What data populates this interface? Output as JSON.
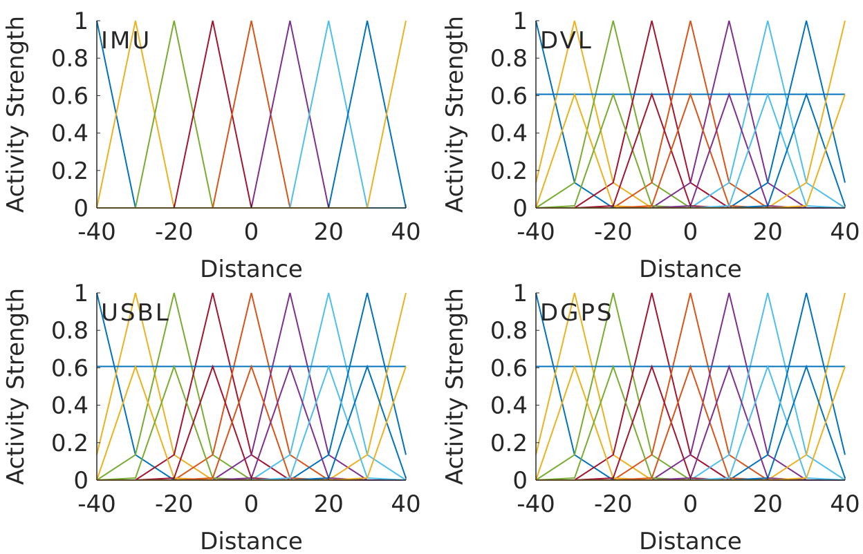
{
  "figure": {
    "series_colors": [
      "#0072BD",
      "#EDB120",
      "#77AC30",
      "#A2142F",
      "#D95319",
      "#7E2F8E",
      "#4DBEEE",
      "#0072BD",
      "#EDB120"
    ]
  },
  "chart_data": [
    {
      "type": "line",
      "annotation": "IMU",
      "xlabel": "Distance",
      "ylabel": "Activity Strength",
      "xlim": [
        -40,
        40
      ],
      "ylim": [
        0,
        1
      ],
      "xticks": [
        "-40",
        "-20",
        "0",
        "20",
        "40"
      ],
      "yticks": [
        "0",
        "0.2",
        "0.4",
        "0.6",
        "0.8",
        "1"
      ],
      "grid": false,
      "x": [
        -40,
        -30,
        -20,
        -10,
        0,
        10,
        20,
        30,
        40
      ],
      "series": [
        {
          "values": [
            1,
            0,
            0,
            0,
            0,
            0,
            0,
            0,
            0
          ]
        },
        {
          "values": [
            0,
            1,
            0,
            0,
            0,
            0,
            0,
            0,
            0
          ]
        },
        {
          "values": [
            0,
            0,
            1,
            0,
            0,
            0,
            0,
            0,
            0
          ]
        },
        {
          "values": [
            0,
            0,
            0,
            1,
            0,
            0,
            0,
            0,
            0
          ]
        },
        {
          "values": [
            0,
            0,
            0,
            0,
            1,
            0,
            0,
            0,
            0
          ]
        },
        {
          "values": [
            0,
            0,
            0,
            0,
            0,
            1,
            0,
            0,
            0
          ]
        },
        {
          "values": [
            0,
            0,
            0,
            0,
            0,
            0,
            1,
            0,
            0
          ]
        },
        {
          "values": [
            0,
            0,
            0,
            0,
            0,
            0,
            0,
            1,
            0
          ]
        },
        {
          "values": [
            0,
            0,
            0,
            0,
            0,
            0,
            0,
            0,
            1
          ]
        }
      ]
    },
    {
      "type": "line",
      "annotation": "DVL",
      "xlabel": "Distance",
      "ylabel": "Activity Strength",
      "xlim": [
        -40,
        40
      ],
      "ylim": [
        0,
        1
      ],
      "xticks": [
        "-40",
        "-20",
        "0",
        "20",
        "40"
      ],
      "yticks": [
        "0",
        "0.2",
        "0.4",
        "0.6",
        "0.8",
        "1"
      ],
      "grid": false,
      "x": [
        -40,
        -30,
        -20,
        -10,
        0,
        10,
        20,
        30,
        40
      ],
      "series": [
        {
          "values": [
            1,
            0.135,
            0,
            0,
            0,
            0,
            0,
            0,
            0
          ]
        },
        {
          "values": [
            0.135,
            1,
            0.135,
            0,
            0,
            0,
            0,
            0,
            0
          ]
        },
        {
          "values": [
            0,
            0.135,
            1,
            0.135,
            0,
            0,
            0,
            0,
            0
          ]
        },
        {
          "values": [
            0,
            0,
            0.135,
            1,
            0.135,
            0,
            0,
            0,
            0
          ]
        },
        {
          "values": [
            0,
            0,
            0,
            0.135,
            1,
            0.135,
            0,
            0,
            0
          ]
        },
        {
          "values": [
            0,
            0,
            0,
            0,
            0.135,
            1,
            0.135,
            0,
            0
          ]
        },
        {
          "values": [
            0,
            0,
            0,
            0,
            0,
            0.135,
            1,
            0.135,
            0
          ]
        },
        {
          "values": [
            0,
            0,
            0,
            0,
            0,
            0,
            0.135,
            1,
            0.135
          ]
        },
        {
          "values": [
            0,
            0,
            0,
            0,
            0,
            0,
            0,
            0.135,
            1
          ]
        },
        {
          "values": [
            0.607,
            0.607,
            0.607,
            0.607,
            0.607,
            0.607,
            0.607,
            0.607,
            0.607
          ]
        },
        {
          "values": [
            0,
            0.607,
            0.011,
            0,
            0,
            0,
            0,
            0,
            0
          ]
        },
        {
          "values": [
            0,
            0.011,
            0.607,
            0.011,
            0,
            0,
            0,
            0,
            0
          ]
        },
        {
          "values": [
            0,
            0,
            0.011,
            0.607,
            0.011,
            0,
            0,
            0,
            0
          ]
        },
        {
          "values": [
            0,
            0,
            0,
            0.011,
            0.607,
            0.011,
            0,
            0,
            0
          ]
        },
        {
          "values": [
            0,
            0,
            0,
            0,
            0.011,
            0.607,
            0.011,
            0,
            0
          ]
        },
        {
          "values": [
            0,
            0,
            0,
            0,
            0,
            0.011,
            0.607,
            0.011,
            0
          ]
        },
        {
          "values": [
            0,
            0,
            0,
            0,
            0,
            0,
            0.011,
            0.607,
            0.011
          ]
        },
        {
          "values": [
            0,
            0,
            0,
            0,
            0,
            0,
            0,
            0.011,
            0.607
          ]
        }
      ]
    },
    {
      "type": "line",
      "annotation": "USBL",
      "xlabel": "Distance",
      "ylabel": "Activity Strength",
      "xlim": [
        -40,
        40
      ],
      "ylim": [
        0,
        1
      ],
      "xticks": [
        "-40",
        "-20",
        "0",
        "20",
        "40"
      ],
      "yticks": [
        "0",
        "0.2",
        "0.4",
        "0.6",
        "0.8",
        "1"
      ],
      "grid": false,
      "x": [
        -40,
        -30,
        -20,
        -10,
        0,
        10,
        20,
        30,
        40
      ],
      "series": [
        {
          "values": [
            1,
            0.135,
            0,
            0,
            0,
            0,
            0,
            0,
            0
          ]
        },
        {
          "values": [
            0.135,
            1,
            0.135,
            0,
            0,
            0,
            0,
            0,
            0
          ]
        },
        {
          "values": [
            0,
            0.135,
            1,
            0.135,
            0,
            0,
            0,
            0,
            0
          ]
        },
        {
          "values": [
            0,
            0,
            0.135,
            1,
            0.135,
            0,
            0,
            0,
            0
          ]
        },
        {
          "values": [
            0,
            0,
            0,
            0.135,
            1,
            0.135,
            0,
            0,
            0
          ]
        },
        {
          "values": [
            0,
            0,
            0,
            0,
            0.135,
            1,
            0.135,
            0,
            0
          ]
        },
        {
          "values": [
            0,
            0,
            0,
            0,
            0,
            0.135,
            1,
            0.135,
            0
          ]
        },
        {
          "values": [
            0,
            0,
            0,
            0,
            0,
            0,
            0.135,
            1,
            0.135
          ]
        },
        {
          "values": [
            0,
            0,
            0,
            0,
            0,
            0,
            0,
            0.135,
            1
          ]
        },
        {
          "values": [
            0.607,
            0.607,
            0.607,
            0.607,
            0.607,
            0.607,
            0.607,
            0.607,
            0.607
          ]
        },
        {
          "values": [
            0,
            0.607,
            0.011,
            0,
            0,
            0,
            0,
            0,
            0
          ]
        },
        {
          "values": [
            0,
            0.011,
            0.607,
            0.011,
            0,
            0,
            0,
            0,
            0
          ]
        },
        {
          "values": [
            0,
            0,
            0.011,
            0.607,
            0.011,
            0,
            0,
            0,
            0
          ]
        },
        {
          "values": [
            0,
            0,
            0,
            0.011,
            0.607,
            0.011,
            0,
            0,
            0
          ]
        },
        {
          "values": [
            0,
            0,
            0,
            0,
            0.011,
            0.607,
            0.011,
            0,
            0
          ]
        },
        {
          "values": [
            0,
            0,
            0,
            0,
            0,
            0.011,
            0.607,
            0.011,
            0
          ]
        },
        {
          "values": [
            0,
            0,
            0,
            0,
            0,
            0,
            0.011,
            0.607,
            0.011
          ]
        },
        {
          "values": [
            0,
            0,
            0,
            0,
            0,
            0,
            0,
            0.011,
            0.607
          ]
        }
      ]
    },
    {
      "type": "line",
      "annotation": "DGPS",
      "xlabel": "Distance",
      "ylabel": "Activity Strength",
      "xlim": [
        -40,
        40
      ],
      "ylim": [
        0,
        1
      ],
      "xticks": [
        "-40",
        "-20",
        "0",
        "20",
        "40"
      ],
      "yticks": [
        "0",
        "0.2",
        "0.4",
        "0.6",
        "0.8",
        "1"
      ],
      "grid": false,
      "x": [
        -40,
        -30,
        -20,
        -10,
        0,
        10,
        20,
        30,
        40
      ],
      "series": [
        {
          "values": [
            1,
            0.135,
            0,
            0,
            0,
            0,
            0,
            0,
            0
          ]
        },
        {
          "values": [
            0.135,
            1,
            0.135,
            0,
            0,
            0,
            0,
            0,
            0
          ]
        },
        {
          "values": [
            0,
            0.135,
            1,
            0.135,
            0,
            0,
            0,
            0,
            0
          ]
        },
        {
          "values": [
            0,
            0,
            0.135,
            1,
            0.135,
            0,
            0,
            0,
            0
          ]
        },
        {
          "values": [
            0,
            0,
            0,
            0.135,
            1,
            0.135,
            0,
            0,
            0
          ]
        },
        {
          "values": [
            0,
            0,
            0,
            0,
            0.135,
            1,
            0.135,
            0,
            0
          ]
        },
        {
          "values": [
            0,
            0,
            0,
            0,
            0,
            0.135,
            1,
            0.135,
            0
          ]
        },
        {
          "values": [
            0,
            0,
            0,
            0,
            0,
            0,
            0.135,
            1,
            0.135
          ]
        },
        {
          "values": [
            0,
            0,
            0,
            0,
            0,
            0,
            0,
            0.135,
            1
          ]
        },
        {
          "values": [
            0.607,
            0.607,
            0.607,
            0.607,
            0.607,
            0.607,
            0.607,
            0.607,
            0.607
          ]
        },
        {
          "values": [
            0,
            0.607,
            0.011,
            0,
            0,
            0,
            0,
            0,
            0
          ]
        },
        {
          "values": [
            0,
            0.011,
            0.607,
            0.011,
            0,
            0,
            0,
            0,
            0
          ]
        },
        {
          "values": [
            0,
            0,
            0.011,
            0.607,
            0.011,
            0,
            0,
            0,
            0
          ]
        },
        {
          "values": [
            0,
            0,
            0,
            0.011,
            0.607,
            0.011,
            0,
            0,
            0
          ]
        },
        {
          "values": [
            0,
            0,
            0,
            0,
            0.011,
            0.607,
            0.011,
            0,
            0
          ]
        },
        {
          "values": [
            0,
            0,
            0,
            0,
            0,
            0.011,
            0.607,
            0.011,
            0
          ]
        },
        {
          "values": [
            0,
            0,
            0,
            0,
            0,
            0,
            0.011,
            0.607,
            0.011
          ]
        },
        {
          "values": [
            0,
            0,
            0,
            0,
            0,
            0,
            0,
            0.011,
            0.607
          ]
        }
      ]
    }
  ]
}
